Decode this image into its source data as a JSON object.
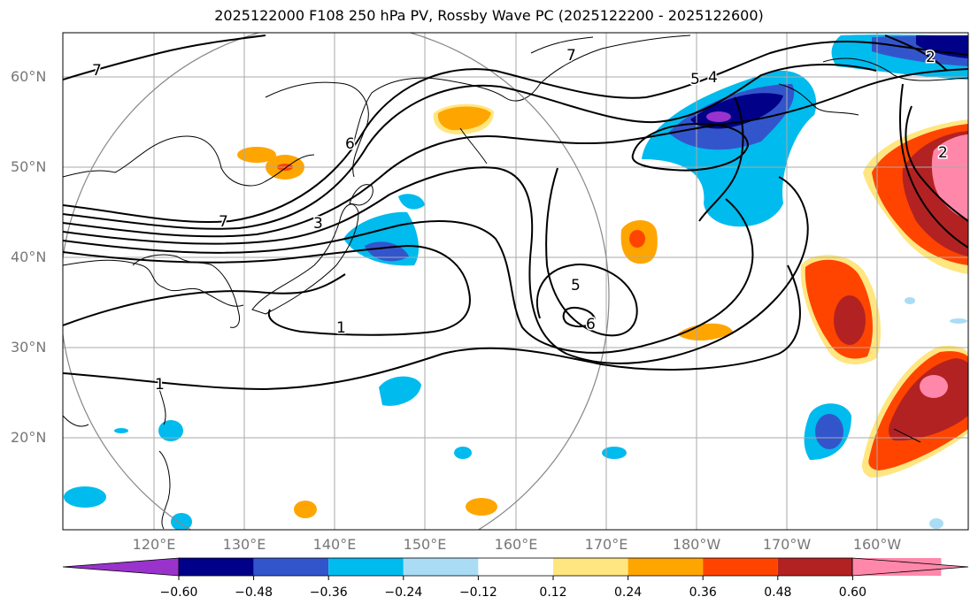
{
  "title": "2025122000 F108 250 hPa PV, Rossby Wave PC (2025122200 - 2025122600)",
  "lat_labels": [
    "60°N",
    "50°N",
    "40°N",
    "30°N",
    "20°N"
  ],
  "lon_labels": [
    "120°E",
    "130°E",
    "140°E",
    "150°E",
    "160°E",
    "170°E",
    "180°W",
    "170°W",
    "160°W"
  ],
  "colorbar": {
    "ticks": [
      "−0.60",
      "−0.48",
      "−0.36",
      "−0.24",
      "−0.12",
      "0.12",
      "0.24",
      "0.36",
      "0.48",
      "0.60"
    ],
    "colors": [
      "#9933cc",
      "#000088",
      "#3355cc",
      "#00bbee",
      "#aaddf5",
      "#ffffff",
      "#ffe680",
      "#ffa500",
      "#ff4400",
      "#b22222",
      "#ff88aa"
    ]
  },
  "contour_labels": [
    "7",
    "7",
    "6",
    "3",
    "7",
    "5",
    "4",
    "2",
    "2",
    "5",
    "6",
    "1",
    "1"
  ]
}
